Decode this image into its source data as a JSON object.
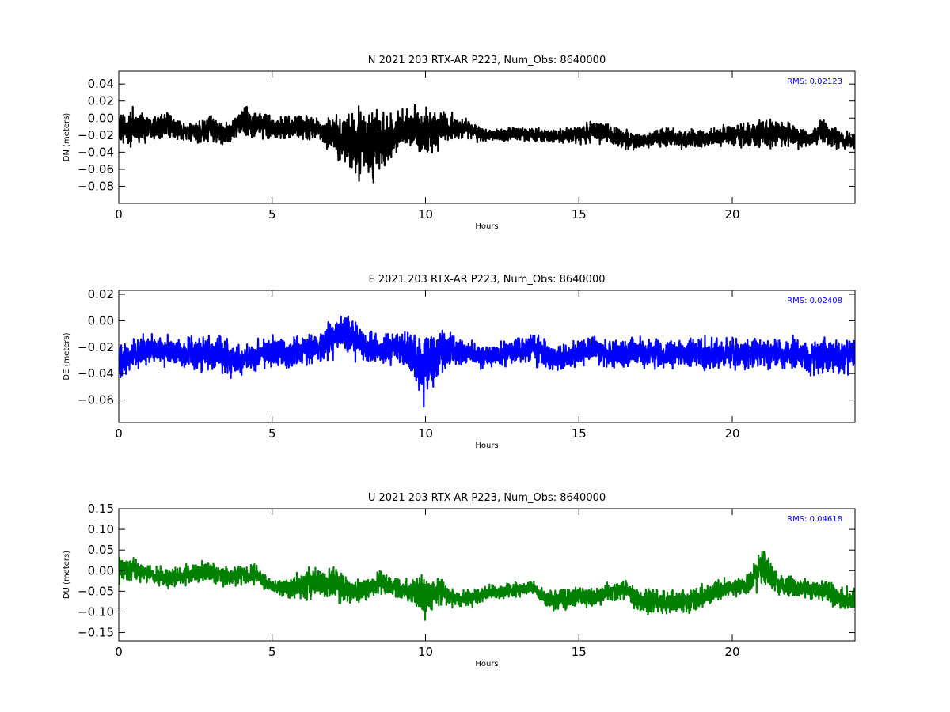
{
  "figure": {
    "background": "#ffffff"
  },
  "chart_data": [
    {
      "type": "line",
      "title": "N 2021 203 RTX-AR  P223, Num_Obs: 8640000",
      "xlabel": "Hours",
      "ylabel": "DN (meters)",
      "xlim": [
        0,
        24
      ],
      "ylim": [
        -0.1,
        0.055
      ],
      "xticks": [
        0,
        5,
        10,
        15,
        20
      ],
      "xtick_labels": [
        "0",
        "5",
        "10",
        "15",
        "20"
      ],
      "yticks": [
        0.04,
        0.02,
        0.0,
        -0.02,
        -0.04,
        -0.06,
        -0.08
      ],
      "ytick_labels": [
        "0.04",
        "0.02",
        "0.00",
        "−0.02",
        "−0.04",
        "−0.06",
        "−0.08"
      ],
      "color": "#000000",
      "rms_text": "RMS:  0.02123",
      "rms_value": 0.02123,
      "rms_color": "#0000ff",
      "n_obs": 8640000,
      "grid": false,
      "series": [
        {
          "hours": [
            0,
            0.5,
            1,
            1.5,
            2,
            2.5,
            3,
            3.5,
            4,
            4.5,
            5,
            5.5,
            6,
            6.5,
            7,
            7.5,
            8,
            8.5,
            9,
            9.5,
            10,
            10.5,
            11,
            11.5,
            12,
            12.5,
            13,
            13.5,
            14,
            14.5,
            15,
            15.5,
            16,
            16.5,
            17,
            17.5,
            18,
            18.5,
            19,
            19.5,
            20,
            20.5,
            21,
            21.5,
            22,
            22.5,
            23,
            23.5,
            24
          ],
          "center": [
            -0.015,
            -0.012,
            -0.01,
            -0.008,
            -0.015,
            -0.018,
            -0.012,
            -0.02,
            -0.005,
            -0.008,
            -0.01,
            -0.012,
            -0.01,
            -0.012,
            -0.02,
            -0.028,
            -0.03,
            -0.03,
            -0.02,
            -0.012,
            -0.018,
            -0.012,
            -0.012,
            -0.015,
            -0.02,
            -0.02,
            -0.018,
            -0.02,
            -0.02,
            -0.02,
            -0.02,
            -0.015,
            -0.02,
            -0.025,
            -0.028,
            -0.022,
            -0.022,
            -0.025,
            -0.025,
            -0.022,
            -0.02,
            -0.02,
            -0.018,
            -0.018,
            -0.02,
            -0.025,
            -0.015,
            -0.025,
            -0.028
          ],
          "amplitude": [
            0.025,
            0.03,
            0.02,
            0.02,
            0.015,
            0.015,
            0.022,
            0.018,
            0.025,
            0.02,
            0.02,
            0.02,
            0.02,
            0.018,
            0.03,
            0.045,
            0.055,
            0.055,
            0.03,
            0.035,
            0.04,
            0.03,
            0.018,
            0.015,
            0.01,
            0.01,
            0.012,
            0.01,
            0.01,
            0.01,
            0.015,
            0.018,
            0.015,
            0.015,
            0.012,
            0.012,
            0.015,
            0.015,
            0.012,
            0.015,
            0.018,
            0.02,
            0.025,
            0.02,
            0.018,
            0.015,
            0.018,
            0.015,
            0.015
          ]
        }
      ]
    },
    {
      "type": "line",
      "title": "E 2021 203 RTX-AR  P223, Num_Obs: 8640000",
      "xlabel": "Hours",
      "ylabel": "DE (meters)",
      "xlim": [
        0,
        24
      ],
      "ylim": [
        -0.077,
        0.023
      ],
      "xticks": [
        0,
        5,
        10,
        15,
        20
      ],
      "xtick_labels": [
        "0",
        "5",
        "10",
        "15",
        "20"
      ],
      "yticks": [
        0.02,
        0.0,
        -0.02,
        -0.04,
        -0.06
      ],
      "ytick_labels": [
        "0.02",
        "0.00",
        "−0.02",
        "−0.04",
        "−0.06"
      ],
      "color": "#0000ff",
      "rms_text": "RMS:  0.02408",
      "rms_value": 0.02408,
      "rms_color": "#0000ff",
      "n_obs": 8640000,
      "grid": false,
      "series": [
        {
          "hours": [
            0,
            0.5,
            1,
            1.5,
            2,
            2.5,
            3,
            3.5,
            4,
            4.5,
            5,
            5.5,
            6,
            6.5,
            7,
            7.5,
            8,
            8.5,
            9,
            9.5,
            10,
            10.5,
            11,
            11.5,
            12,
            12.5,
            13,
            13.5,
            14,
            14.5,
            15,
            15.5,
            16,
            16.5,
            17,
            17.5,
            18,
            18.5,
            19,
            19.5,
            20,
            20.5,
            21,
            21.5,
            22,
            22.5,
            23,
            23.5,
            24
          ],
          "center": [
            -0.035,
            -0.025,
            -0.022,
            -0.022,
            -0.025,
            -0.025,
            -0.025,
            -0.028,
            -0.03,
            -0.025,
            -0.022,
            -0.025,
            -0.022,
            -0.02,
            -0.012,
            -0.01,
            -0.02,
            -0.022,
            -0.02,
            -0.025,
            -0.035,
            -0.025,
            -0.022,
            -0.025,
            -0.028,
            -0.025,
            -0.022,
            -0.02,
            -0.028,
            -0.028,
            -0.025,
            -0.022,
            -0.025,
            -0.025,
            -0.025,
            -0.025,
            -0.025,
            -0.025,
            -0.025,
            -0.025,
            -0.025,
            -0.025,
            -0.025,
            -0.025,
            -0.025,
            -0.028,
            -0.025,
            -0.028,
            -0.025
          ],
          "amplitude": [
            0.02,
            0.015,
            0.015,
            0.015,
            0.015,
            0.018,
            0.02,
            0.018,
            0.015,
            0.015,
            0.015,
            0.018,
            0.015,
            0.015,
            0.02,
            0.022,
            0.015,
            0.015,
            0.015,
            0.02,
            0.035,
            0.022,
            0.015,
            0.012,
            0.012,
            0.012,
            0.015,
            0.015,
            0.015,
            0.012,
            0.012,
            0.012,
            0.015,
            0.015,
            0.015,
            0.015,
            0.015,
            0.015,
            0.015,
            0.015,
            0.015,
            0.015,
            0.015,
            0.015,
            0.015,
            0.015,
            0.018,
            0.018,
            0.018
          ]
        }
      ]
    },
    {
      "type": "line",
      "title": "U 2021 203 RTX-AR  P223, Num_Obs: 8640000",
      "xlabel": "Hours",
      "ylabel": "DU (meters)",
      "xlim": [
        0,
        24
      ],
      "ylim": [
        -0.17,
        0.15
      ],
      "xticks": [
        0,
        5,
        10,
        15,
        20
      ],
      "xtick_labels": [
        "0",
        "5",
        "10",
        "15",
        "20"
      ],
      "yticks": [
        0.15,
        0.1,
        0.05,
        0.0,
        -0.05,
        -0.1,
        -0.15
      ],
      "ytick_labels": [
        "0.15",
        "0.10",
        "0.05",
        "0.00",
        "−0.05",
        "−0.10",
        "−0.15"
      ],
      "color": "#008000",
      "rms_text": "RMS:  0.04618",
      "rms_value": 0.04618,
      "rms_color": "#0000ff",
      "n_obs": 8640000,
      "grid": false,
      "series": [
        {
          "hours": [
            0,
            0.5,
            1,
            1.5,
            2,
            2.5,
            3,
            3.5,
            4,
            4.5,
            5,
            5.5,
            6,
            6.5,
            7,
            7.5,
            8,
            8.5,
            9,
            9.5,
            10,
            10.5,
            11,
            11.5,
            12,
            12.5,
            13,
            13.5,
            14,
            14.5,
            15,
            15.5,
            16,
            16.5,
            17,
            17.5,
            18,
            18.5,
            19,
            19.5,
            20,
            20.5,
            21,
            21.5,
            22,
            22.5,
            23,
            23.5,
            24
          ],
          "center": [
            0.0,
            0.005,
            -0.01,
            -0.02,
            -0.015,
            -0.005,
            -0.005,
            -0.015,
            -0.01,
            -0.01,
            -0.04,
            -0.045,
            -0.03,
            -0.025,
            -0.03,
            -0.05,
            -0.045,
            -0.03,
            -0.04,
            -0.05,
            -0.06,
            -0.05,
            -0.07,
            -0.065,
            -0.055,
            -0.05,
            -0.045,
            -0.04,
            -0.07,
            -0.07,
            -0.065,
            -0.065,
            -0.05,
            -0.05,
            -0.07,
            -0.075,
            -0.08,
            -0.075,
            -0.065,
            -0.05,
            -0.04,
            -0.035,
            0.01,
            -0.03,
            -0.04,
            -0.045,
            -0.05,
            -0.07,
            -0.07
          ],
          "amplitude": [
            0.04,
            0.035,
            0.03,
            0.03,
            0.03,
            0.035,
            0.035,
            0.03,
            0.035,
            0.03,
            0.02,
            0.03,
            0.05,
            0.06,
            0.055,
            0.04,
            0.035,
            0.035,
            0.035,
            0.04,
            0.07,
            0.04,
            0.025,
            0.025,
            0.025,
            0.025,
            0.025,
            0.02,
            0.03,
            0.035,
            0.03,
            0.03,
            0.03,
            0.03,
            0.035,
            0.04,
            0.04,
            0.035,
            0.035,
            0.035,
            0.03,
            0.035,
            0.07,
            0.035,
            0.03,
            0.03,
            0.035,
            0.04,
            0.035
          ]
        }
      ]
    }
  ]
}
